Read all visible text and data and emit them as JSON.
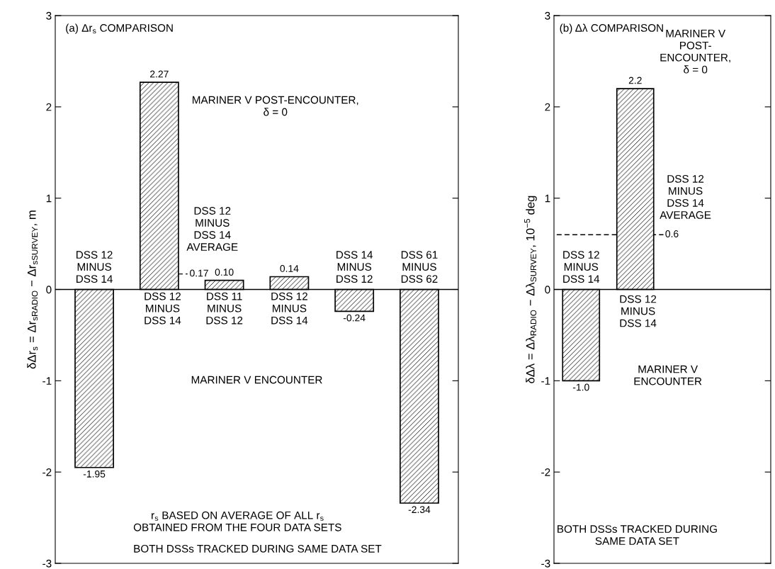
{
  "chart_data": [
    {
      "type": "bar",
      "title": "(a) Δr$_{s}$ COMPARISON",
      "ylabel": "δΔr$_{s}$ = Δr$_{sRADIO}$ − Δr$_{sSURVEY}$, m",
      "categories": [
        null,
        null,
        null,
        null,
        null,
        null
      ],
      "values": [
        -1.95,
        2.27,
        0.1,
        0.14,
        -0.24,
        -2.34
      ],
      "value_labels": [
        "-1.95",
        "2.27",
        "0.10",
        "0.14",
        "-0.24",
        "-2.34"
      ],
      "color": "#000000",
      "ylim": [
        -3,
        3
      ],
      "yticks": [
        -3,
        -2,
        -1,
        0,
        1,
        2,
        3
      ],
      "ref_lines": [
        {
          "axis": "y",
          "value": 0.17,
          "label": "0.17",
          "line_style": "dashed"
        },
        {
          "axis": "y",
          "value": 0,
          "line_style": "solid"
        }
      ],
      "annotations": [
        "DSS 12\nMINUS\nDSS 14",
        "DSS 12\nMINUS\nDSS 14",
        "DSS 12\nMINUS\nDSS 14\nAVERAGE",
        "DSS 11\nMINUS\nDSS 12",
        "DSS 12\nMINUS\nDSS 14",
        "DSS 14\nMINUS\nDSS 12",
        "DSS 61\nMINUS\nDSS 62",
        "MARINER V POST-ENCOUNTER,\nδ = 0",
        "MARINER V ENCOUNTER",
        "r$_{s}$ BASED ON AVERAGE OF ALL r$_{s}$\nOBTAINED FROM THE FOUR DATA SETS",
        "BOTH DSSs TRACKED DURING SAME DATA SET"
      ],
      "grid": false,
      "legend": false
    },
    {
      "type": "bar",
      "title": "(b) Δλ COMPARISON",
      "ylabel": "δΔλ = Δλ$_{RADIO}$ − Δλ$_{SURVEY}$, 10$^{−5}$ deg",
      "categories": [
        null,
        null,
        null,
        null
      ],
      "values": [
        -1.0,
        2.2,
        null,
        null
      ],
      "value_labels": [
        "-1.0",
        "2.2",
        null,
        null
      ],
      "color": "#000000",
      "ylim": [
        -3,
        3
      ],
      "yticks": [
        -3,
        -2,
        -1,
        0,
        1,
        2,
        3
      ],
      "ref_lines": [
        {
          "axis": "y",
          "value": 0.6,
          "label": "0.6",
          "line_style": "dashed"
        },
        {
          "axis": "y",
          "value": 0,
          "line_style": "solid"
        }
      ],
      "annotations": [
        "DSS 12\nMINUS\nDSS 14",
        "DSS 12\nMINUS\nDSS 14",
        "DSS 12\nMINUS\nDSS 14\nAVERAGE",
        "MARINER V\nPOST-\nENCOUNTER,\nδ = 0",
        "MARINER V\nENCOUNTER",
        "BOTH DSSs TRACKED DURING\nSAME DATA SET"
      ],
      "grid": false,
      "legend": false
    }
  ]
}
